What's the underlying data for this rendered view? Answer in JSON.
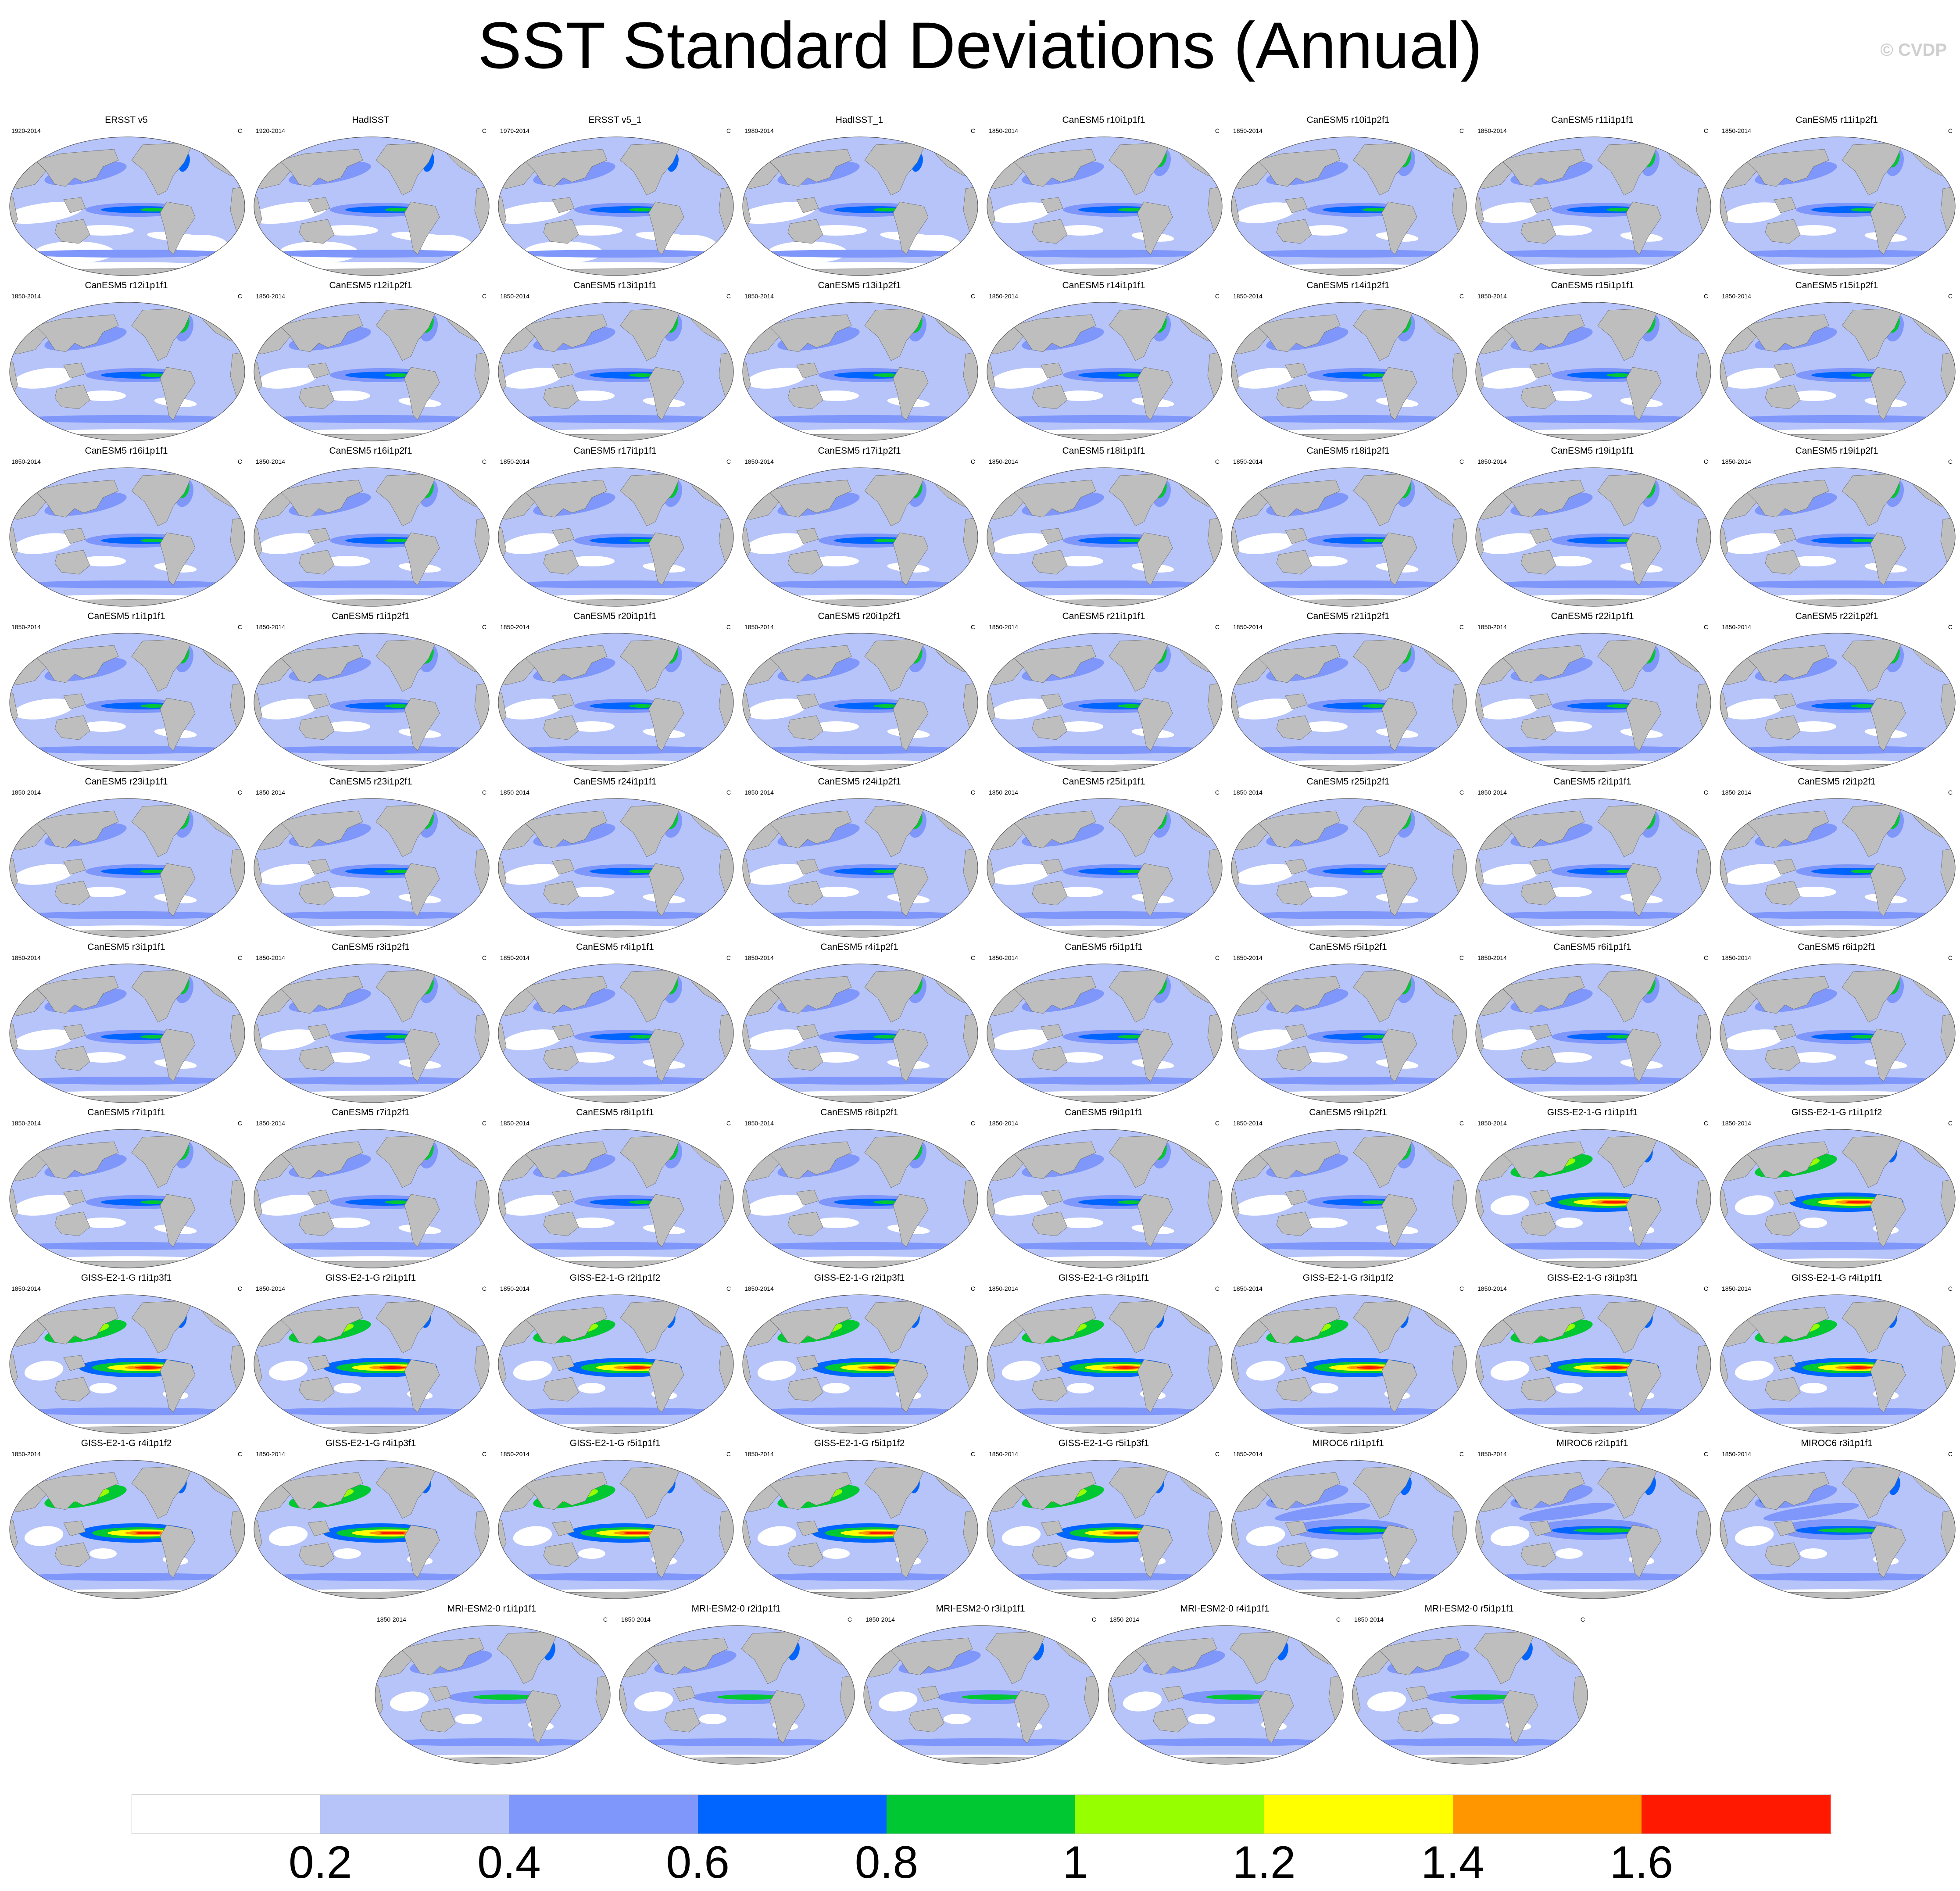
{
  "title": "SST Standard Deviations (Annual)",
  "watermark": "© CVDP",
  "colors": {
    "ocean_base": "#b6c4fa",
    "land": "#bebebe",
    "map_border": "#555555"
  },
  "chart_data": {
    "type": "heatmap",
    "projection": "robinson",
    "unit": "C",
    "colorbar": {
      "levels": [
        0.2,
        0.4,
        0.6,
        0.8,
        1,
        1.2,
        1.4,
        1.6
      ],
      "tick_labels": [
        "0.2",
        "0.4",
        "0.6",
        "0.8",
        "1",
        "1.2",
        "1.4",
        "1.6"
      ],
      "colors": [
        "#ffffff",
        "#b6c4fa",
        "#7f96fa",
        "#0064ff",
        "#00c832",
        "#96ff00",
        "#ffff00",
        "#ff9600",
        "#ff1900"
      ]
    },
    "panels": [
      {
        "name": "ERSST v5",
        "period": "1920-2014",
        "unit": "C",
        "style": "obs"
      },
      {
        "name": "HadISST",
        "period": "1920-2014",
        "unit": "C",
        "style": "obs"
      },
      {
        "name": "ERSST v5_1",
        "period": "1979-2014",
        "unit": "C",
        "style": "obs"
      },
      {
        "name": "HadISST_1",
        "period": "1980-2014",
        "unit": "C",
        "style": "obs"
      },
      {
        "name": "CanESM5 r10i1p1f1",
        "period": "1850-2014",
        "unit": "C",
        "style": "canesm"
      },
      {
        "name": "CanESM5 r10i1p2f1",
        "period": "1850-2014",
        "unit": "C",
        "style": "canesm"
      },
      {
        "name": "CanESM5 r11i1p1f1",
        "period": "1850-2014",
        "unit": "C",
        "style": "canesm"
      },
      {
        "name": "CanESM5 r11i1p2f1",
        "period": "1850-2014",
        "unit": "C",
        "style": "canesm"
      },
      {
        "name": "CanESM5 r12i1p1f1",
        "period": "1850-2014",
        "unit": "C",
        "style": "canesm"
      },
      {
        "name": "CanESM5 r12i1p2f1",
        "period": "1850-2014",
        "unit": "C",
        "style": "canesm"
      },
      {
        "name": "CanESM5 r13i1p1f1",
        "period": "1850-2014",
        "unit": "C",
        "style": "canesm"
      },
      {
        "name": "CanESM5 r13i1p2f1",
        "period": "1850-2014",
        "unit": "C",
        "style": "canesm"
      },
      {
        "name": "CanESM5 r14i1p1f1",
        "period": "1850-2014",
        "unit": "C",
        "style": "canesm"
      },
      {
        "name": "CanESM5 r14i1p2f1",
        "period": "1850-2014",
        "unit": "C",
        "style": "canesm"
      },
      {
        "name": "CanESM5 r15i1p1f1",
        "period": "1850-2014",
        "unit": "C",
        "style": "canesm"
      },
      {
        "name": "CanESM5 r15i1p2f1",
        "period": "1850-2014",
        "unit": "C",
        "style": "canesm"
      },
      {
        "name": "CanESM5 r16i1p1f1",
        "period": "1850-2014",
        "unit": "C",
        "style": "canesm"
      },
      {
        "name": "CanESM5 r16i1p2f1",
        "period": "1850-2014",
        "unit": "C",
        "style": "canesm"
      },
      {
        "name": "CanESM5 r17i1p1f1",
        "period": "1850-2014",
        "unit": "C",
        "style": "canesm"
      },
      {
        "name": "CanESM5 r17i1p2f1",
        "period": "1850-2014",
        "unit": "C",
        "style": "canesm"
      },
      {
        "name": "CanESM5 r18i1p1f1",
        "period": "1850-2014",
        "unit": "C",
        "style": "canesm"
      },
      {
        "name": "CanESM5 r18i1p2f1",
        "period": "1850-2014",
        "unit": "C",
        "style": "canesm"
      },
      {
        "name": "CanESM5 r19i1p1f1",
        "period": "1850-2014",
        "unit": "C",
        "style": "canesm"
      },
      {
        "name": "CanESM5 r19i1p2f1",
        "period": "1850-2014",
        "unit": "C",
        "style": "canesm"
      },
      {
        "name": "CanESM5 r1i1p1f1",
        "period": "1850-2014",
        "unit": "C",
        "style": "canesm"
      },
      {
        "name": "CanESM5 r1i1p2f1",
        "period": "1850-2014",
        "unit": "C",
        "style": "canesm"
      },
      {
        "name": "CanESM5 r20i1p1f1",
        "period": "1850-2014",
        "unit": "C",
        "style": "canesm"
      },
      {
        "name": "CanESM5 r20i1p2f1",
        "period": "1850-2014",
        "unit": "C",
        "style": "canesm"
      },
      {
        "name": "CanESM5 r21i1p1f1",
        "period": "1850-2014",
        "unit": "C",
        "style": "canesm"
      },
      {
        "name": "CanESM5 r21i1p2f1",
        "period": "1850-2014",
        "unit": "C",
        "style": "canesm"
      },
      {
        "name": "CanESM5 r22i1p1f1",
        "period": "1850-2014",
        "unit": "C",
        "style": "canesm"
      },
      {
        "name": "CanESM5 r22i1p2f1",
        "period": "1850-2014",
        "unit": "C",
        "style": "canesm"
      },
      {
        "name": "CanESM5 r23i1p1f1",
        "period": "1850-2014",
        "unit": "C",
        "style": "canesm"
      },
      {
        "name": "CanESM5 r23i1p2f1",
        "period": "1850-2014",
        "unit": "C",
        "style": "canesm"
      },
      {
        "name": "CanESM5 r24i1p1f1",
        "period": "1850-2014",
        "unit": "C",
        "style": "canesm"
      },
      {
        "name": "CanESM5 r24i1p2f1",
        "period": "1850-2014",
        "unit": "C",
        "style": "canesm"
      },
      {
        "name": "CanESM5 r25i1p1f1",
        "period": "1850-2014",
        "unit": "C",
        "style": "canesm"
      },
      {
        "name": "CanESM5 r25i1p2f1",
        "period": "1850-2014",
        "unit": "C",
        "style": "canesm"
      },
      {
        "name": "CanESM5 r2i1p1f1",
        "period": "1850-2014",
        "unit": "C",
        "style": "canesm"
      },
      {
        "name": "CanESM5 r2i1p2f1",
        "period": "1850-2014",
        "unit": "C",
        "style": "canesm"
      },
      {
        "name": "CanESM5 r3i1p1f1",
        "period": "1850-2014",
        "unit": "C",
        "style": "canesm"
      },
      {
        "name": "CanESM5 r3i1p2f1",
        "period": "1850-2014",
        "unit": "C",
        "style": "canesm"
      },
      {
        "name": "CanESM5 r4i1p1f1",
        "period": "1850-2014",
        "unit": "C",
        "style": "canesm"
      },
      {
        "name": "CanESM5 r4i1p2f1",
        "period": "1850-2014",
        "unit": "C",
        "style": "canesm"
      },
      {
        "name": "CanESM5 r5i1p1f1",
        "period": "1850-2014",
        "unit": "C",
        "style": "canesm"
      },
      {
        "name": "CanESM5 r5i1p2f1",
        "period": "1850-2014",
        "unit": "C",
        "style": "canesm"
      },
      {
        "name": "CanESM5 r6i1p1f1",
        "period": "1850-2014",
        "unit": "C",
        "style": "canesm"
      },
      {
        "name": "CanESM5 r6i1p2f1",
        "period": "1850-2014",
        "unit": "C",
        "style": "canesm"
      },
      {
        "name": "CanESM5 r7i1p1f1",
        "period": "1850-2014",
        "unit": "C",
        "style": "canesm"
      },
      {
        "name": "CanESM5 r7i1p2f1",
        "period": "1850-2014",
        "unit": "C",
        "style": "canesm"
      },
      {
        "name": "CanESM5 r8i1p1f1",
        "period": "1850-2014",
        "unit": "C",
        "style": "canesm"
      },
      {
        "name": "CanESM5 r8i1p2f1",
        "period": "1850-2014",
        "unit": "C",
        "style": "canesm"
      },
      {
        "name": "CanESM5 r9i1p1f1",
        "period": "1850-2014",
        "unit": "C",
        "style": "canesm"
      },
      {
        "name": "CanESM5 r9i1p2f1",
        "period": "1850-2014",
        "unit": "C",
        "style": "canesm"
      },
      {
        "name": "GISS-E2-1-G r1i1p1f1",
        "period": "1850-2014",
        "unit": "C",
        "style": "giss"
      },
      {
        "name": "GISS-E2-1-G r1i1p1f2",
        "period": "1850-2014",
        "unit": "C",
        "style": "giss"
      },
      {
        "name": "GISS-E2-1-G r1i1p3f1",
        "period": "1850-2014",
        "unit": "C",
        "style": "giss"
      },
      {
        "name": "GISS-E2-1-G r2i1p1f1",
        "period": "1850-2014",
        "unit": "C",
        "style": "giss"
      },
      {
        "name": "GISS-E2-1-G r2i1p1f2",
        "period": "1850-2014",
        "unit": "C",
        "style": "giss"
      },
      {
        "name": "GISS-E2-1-G r2i1p3f1",
        "period": "1850-2014",
        "unit": "C",
        "style": "giss"
      },
      {
        "name": "GISS-E2-1-G r3i1p1f1",
        "period": "1850-2014",
        "unit": "C",
        "style": "giss"
      },
      {
        "name": "GISS-E2-1-G r3i1p1f2",
        "period": "1850-2014",
        "unit": "C",
        "style": "giss"
      },
      {
        "name": "GISS-E2-1-G r3i1p3f1",
        "period": "1850-2014",
        "unit": "C",
        "style": "giss"
      },
      {
        "name": "GISS-E2-1-G r4i1p1f1",
        "period": "1850-2014",
        "unit": "C",
        "style": "giss"
      },
      {
        "name": "GISS-E2-1-G r4i1p1f2",
        "period": "1850-2014",
        "unit": "C",
        "style": "giss"
      },
      {
        "name": "GISS-E2-1-G r4i1p3f1",
        "period": "1850-2014",
        "unit": "C",
        "style": "giss"
      },
      {
        "name": "GISS-E2-1-G r5i1p1f1",
        "period": "1850-2014",
        "unit": "C",
        "style": "giss"
      },
      {
        "name": "GISS-E2-1-G r5i1p1f2",
        "period": "1850-2014",
        "unit": "C",
        "style": "giss"
      },
      {
        "name": "GISS-E2-1-G r5i1p3f1",
        "period": "1850-2014",
        "unit": "C",
        "style": "giss"
      },
      {
        "name": "MIROC6 r1i1p1f1",
        "period": "1850-2014",
        "unit": "C",
        "style": "miroc"
      },
      {
        "name": "MIROC6 r2i1p1f1",
        "period": "1850-2014",
        "unit": "C",
        "style": "miroc"
      },
      {
        "name": "MIROC6 r3i1p1f1",
        "period": "1850-2014",
        "unit": "C",
        "style": "miroc"
      },
      {
        "name": "MRI-ESM2-0 r1i1p1f1",
        "period": "1850-2014",
        "unit": "C",
        "style": "mri"
      },
      {
        "name": "MRI-ESM2-0 r2i1p1f1",
        "period": "1850-2014",
        "unit": "C",
        "style": "mri"
      },
      {
        "name": "MRI-ESM2-0 r3i1p1f1",
        "period": "1850-2014",
        "unit": "C",
        "style": "mri"
      },
      {
        "name": "MRI-ESM2-0 r4i1p1f1",
        "period": "1850-2014",
        "unit": "C",
        "style": "mri"
      },
      {
        "name": "MRI-ESM2-0 r5i1p1f1",
        "period": "1850-2014",
        "unit": "C",
        "style": "mri"
      }
    ]
  }
}
